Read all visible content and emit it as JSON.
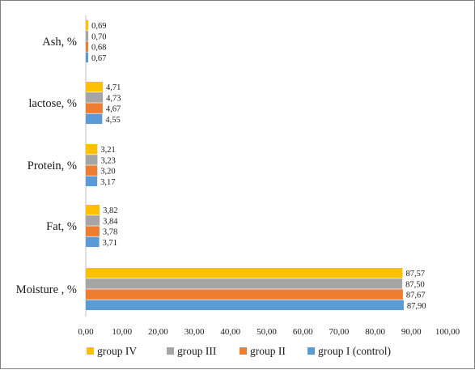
{
  "chart_data": {
    "type": "bar",
    "orientation": "horizontal",
    "categories": [
      "Ash, %",
      "lactose, %",
      "Protein, %",
      "Fat, %",
      "Moisture , %"
    ],
    "series": [
      {
        "name": "group IV",
        "color": "#FFC000",
        "values": [
          0.69,
          4.71,
          3.21,
          3.82,
          87.57
        ],
        "labels": [
          "0,69",
          "4,71",
          "3,21",
          "3,82",
          "87,57"
        ]
      },
      {
        "name": "group III",
        "color": "#A5A5A5",
        "values": [
          0.7,
          4.73,
          3.23,
          3.84,
          87.5
        ],
        "labels": [
          "0,70",
          "4,73",
          "3,23",
          "3,84",
          "87,50"
        ]
      },
      {
        "name": "group II",
        "color": "#ED7D31",
        "values": [
          0.68,
          4.67,
          3.2,
          3.78,
          87.67
        ],
        "labels": [
          "0,68",
          "4,67",
          "3,20",
          "3,78",
          "87,67"
        ]
      },
      {
        "name": "group I (control)",
        "color": "#5B9BD5",
        "values": [
          0.67,
          4.55,
          3.17,
          3.71,
          87.9
        ],
        "labels": [
          "0,67",
          "4,55",
          "3,17",
          "3,71",
          "87,90"
        ]
      }
    ],
    "xlim": [
      0,
      100
    ],
    "xticks": [
      0,
      10,
      20,
      30,
      40,
      50,
      60,
      70,
      80,
      90,
      100
    ],
    "xtick_labels": [
      "0,00",
      "10,00",
      "20,00",
      "30,00",
      "40,00",
      "50,00",
      "60,00",
      "70,00",
      "80,00",
      "90,00",
      "100,00"
    ],
    "legend_position": "bottom",
    "grid": false
  }
}
